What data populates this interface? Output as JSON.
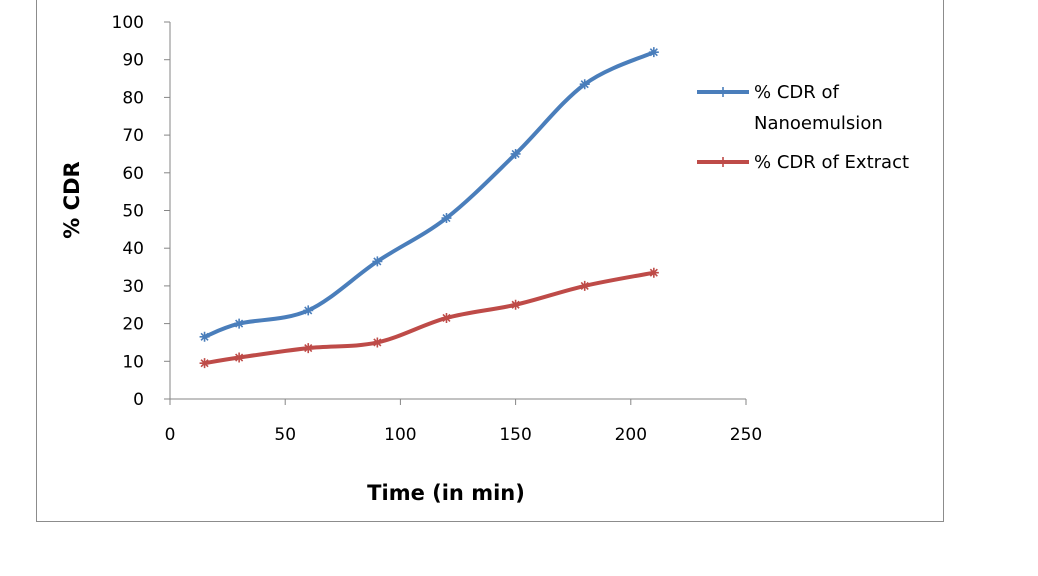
{
  "chart_data": {
    "type": "line",
    "title": "",
    "xlabel": "Time  (in min)",
    "ylabel": "% CDR",
    "xlim": [
      0,
      250
    ],
    "ylim": [
      0,
      100
    ],
    "xticks": [
      0,
      50,
      100,
      150,
      200,
      250
    ],
    "yticks": [
      0,
      10,
      20,
      30,
      40,
      50,
      60,
      70,
      80,
      90,
      100
    ],
    "grid": false,
    "legend_position": "right",
    "x": [
      15,
      30,
      60,
      90,
      120,
      150,
      180,
      210
    ],
    "series": [
      {
        "name": [
          "% CDR of",
          "Nanoemulsion"
        ],
        "color": "#4a7ebb",
        "values": [
          16.5,
          20,
          23.5,
          36.5,
          48,
          65,
          83.5,
          92
        ]
      },
      {
        "name": [
          "% CDR of Extract"
        ],
        "color": "#be4b48",
        "values": [
          9.5,
          11,
          13.5,
          15,
          21.5,
          25,
          30,
          33.5
        ]
      }
    ]
  }
}
